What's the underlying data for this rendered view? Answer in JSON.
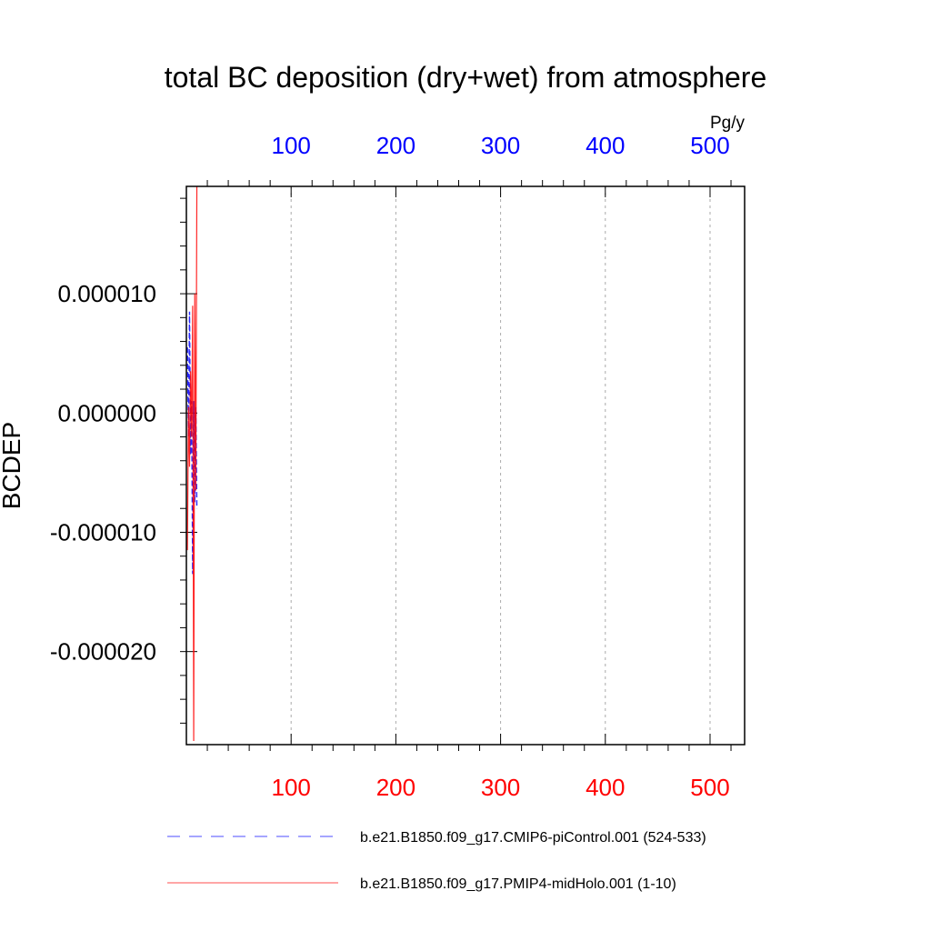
{
  "chart_data": {
    "type": "line",
    "title": "total BC deposition (dry+wet) from atmosphere",
    "ylabel": "BCDEP",
    "units_label": "Pg/y",
    "ylim": [
      -2.78e-05,
      1.9e-05
    ],
    "y_ticks": [
      -2e-05,
      -1e-05,
      0.0,
      1e-05
    ],
    "y_tick_labels": [
      "-0.000020",
      "-0.000010",
      "0.000000",
      "0.000010"
    ],
    "grid": "vertical dashed",
    "colors": {
      "bottom_axis": "#ff0000",
      "top_axis": "#0000ff",
      "series_1": "#0000ff",
      "series_2": "#ff0000"
    },
    "x_axes": [
      {
        "position": "bottom",
        "color": "#ff0000",
        "xlim": [
          0,
          533
        ],
        "ticks": [
          100,
          200,
          300,
          400,
          500
        ],
        "tick_labels": [
          "100",
          "200",
          "300",
          "400",
          "500"
        ]
      },
      {
        "position": "top",
        "color": "#0000ff",
        "xlim": [
          0,
          533
        ],
        "ticks": [
          100,
          200,
          300,
          400,
          500
        ],
        "tick_labels": [
          "100",
          "200",
          "300",
          "400",
          "500"
        ]
      }
    ],
    "series": [
      {
        "name": "b.e21.B1850.f09_g17.CMIP6-piControl.001 (524-533)",
        "axis": "top",
        "style": "dashed",
        "x": [
          1,
          2,
          3,
          4,
          5,
          6,
          7,
          8,
          9,
          10
        ],
        "y": [
          5.5e-06,
          -2e-06,
          8.5e-06,
          -3.5e-06,
          1e-06,
          -1.35e-05,
          1e-06,
          -7.5e-06,
          5e-07,
          -8e-06
        ]
      },
      {
        "name": "b.e21.B1850.f09_g17.PMIP4-midHolo.001 (1-10)",
        "axis": "bottom",
        "style": "solid",
        "x": [
          1,
          2,
          3,
          4,
          5,
          6,
          7,
          8,
          9,
          10
        ],
        "y": [
          -1.15e-05,
          5e-07,
          -4.5e-06,
          3.5e-06,
          -2e-06,
          9e-06,
          -2.75e-05,
          1e-05,
          -6.5e-06,
          1.9e-05
        ]
      }
    ]
  }
}
